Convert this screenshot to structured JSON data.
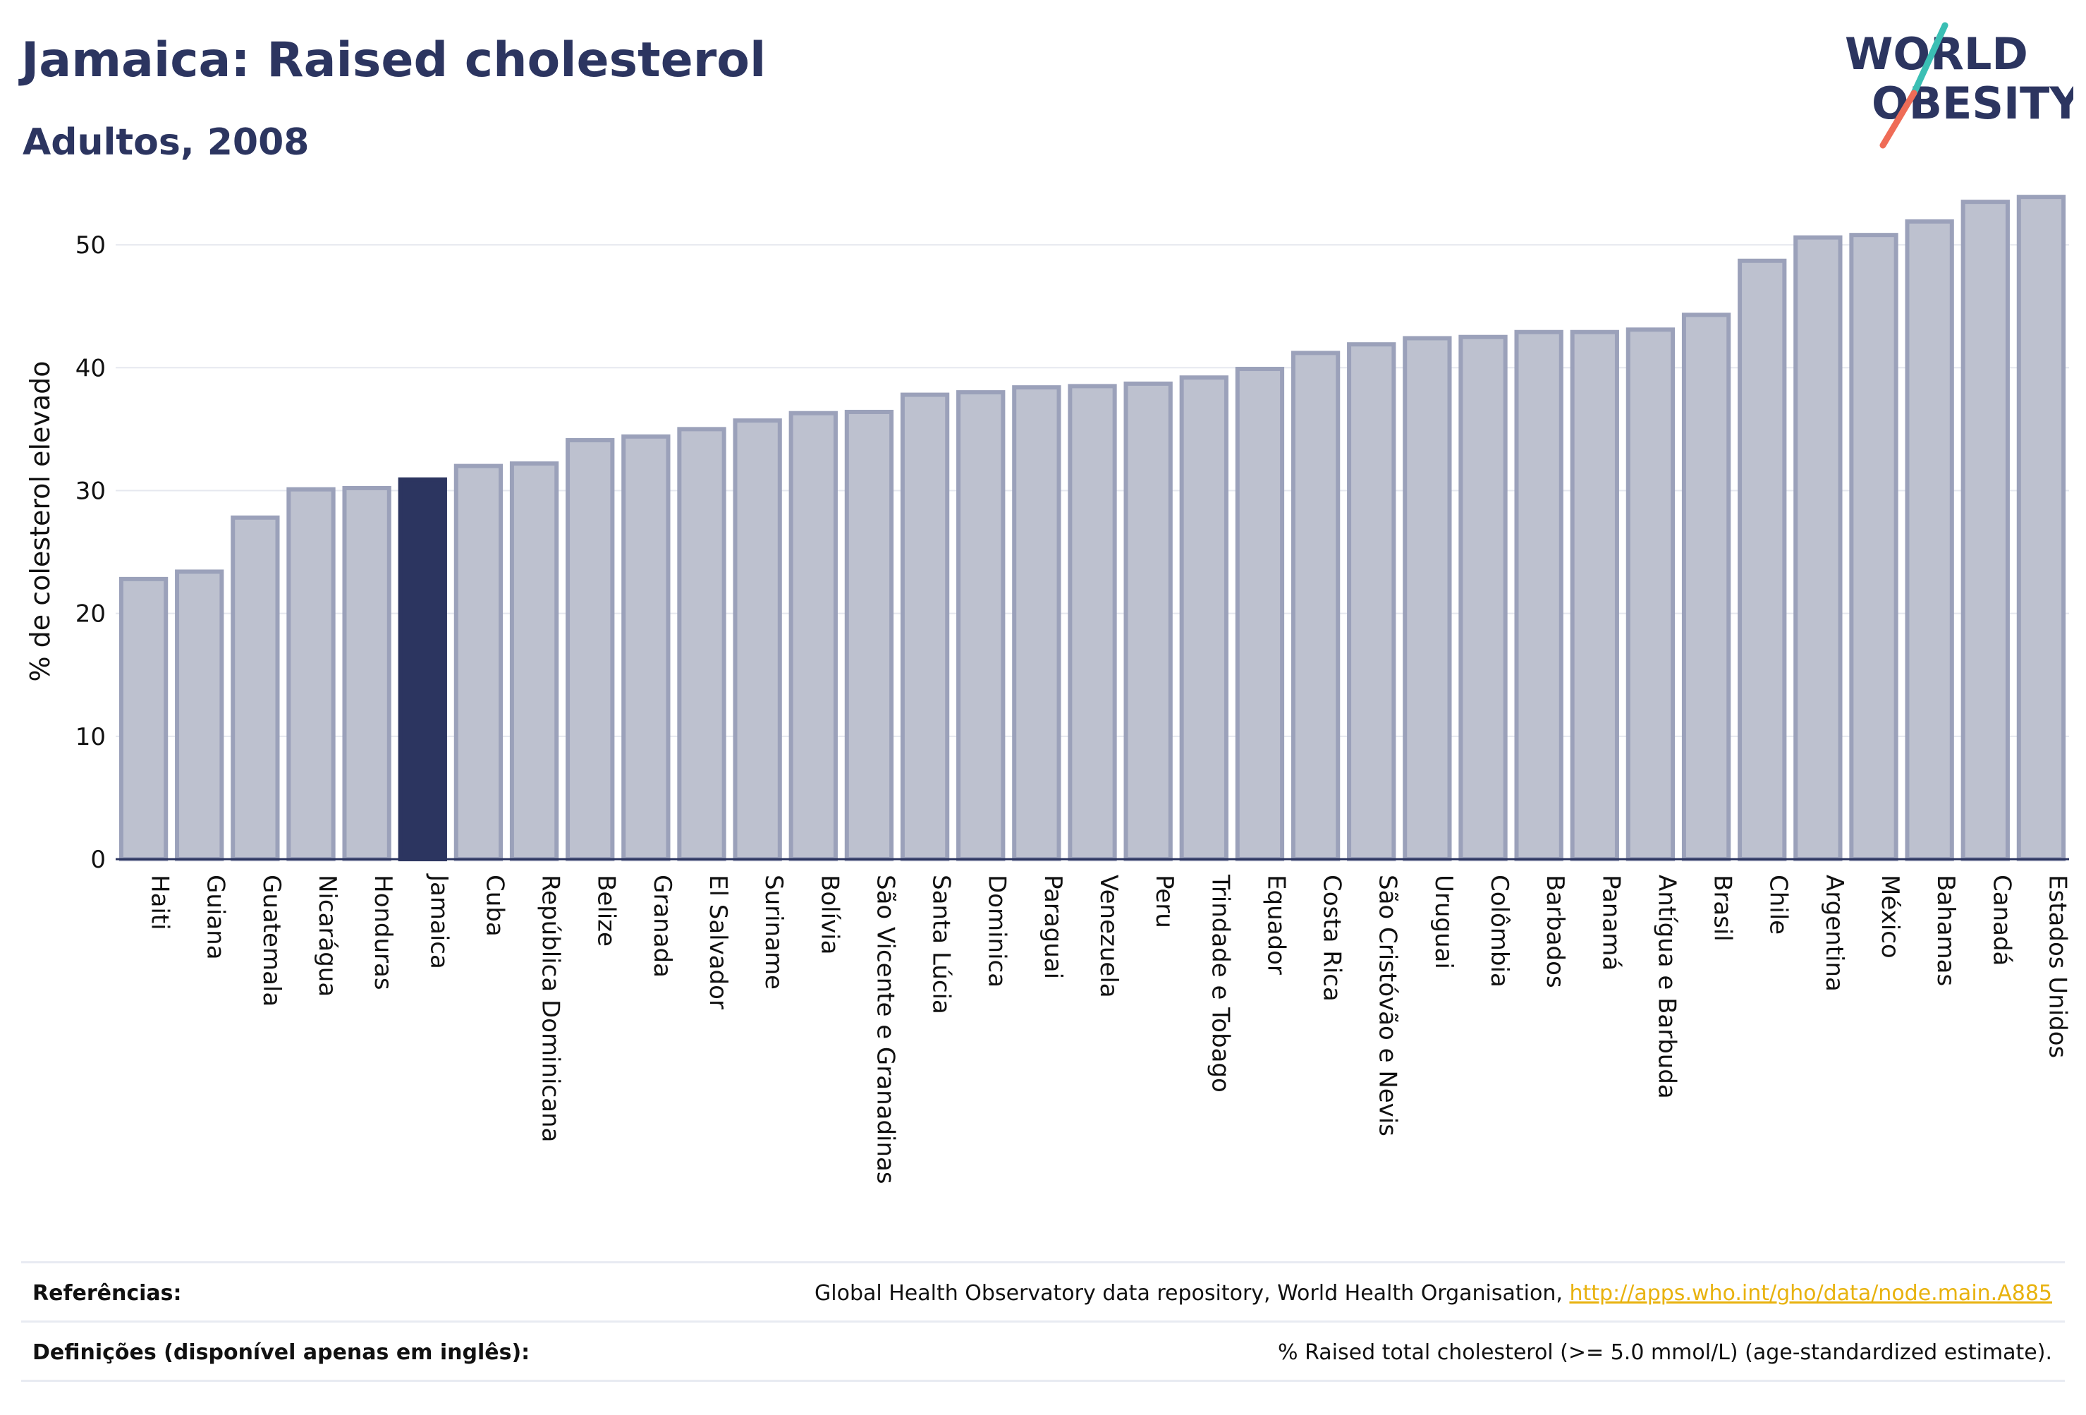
{
  "header": {
    "title": "Jamaica: Raised cholesterol",
    "subtitle": "Adultos, 2008"
  },
  "logo": {
    "line1": "WORLD",
    "line2": "OBESITY",
    "colors": {
      "text": "#2c3560",
      "slash_top": "#3bbfb4",
      "slash_bottom": "#ef6c57"
    }
  },
  "chart_data": {
    "type": "bar",
    "ylabel": "% de colesterol elevado",
    "xlabel": "",
    "ylim": [
      0,
      55
    ],
    "yticks": [
      0,
      10,
      20,
      30,
      40,
      50
    ],
    "grid": "horizontal",
    "highlight": "Jamaica",
    "colors": {
      "bar": "#bdc1cf",
      "bar_outline": "#9ba1ba",
      "highlight": "#2c3560",
      "grid": "#e6e8ef",
      "baseline": "#2c3560"
    },
    "categories": [
      "Haiti",
      "Guiana",
      "Guatemala",
      "Nicarágua",
      "Honduras",
      "Jamaica",
      "Cuba",
      "República Dominicana",
      "Belize",
      "Granada",
      "El Salvador",
      "Suriname",
      "Bolívia",
      "São Vicente e Granadinas",
      "Santa Lúcia",
      "Dominica",
      "Paraguai",
      "Venezuela",
      "Peru",
      "Trindade e Tobago",
      "Equador",
      "Costa Rica",
      "São Cristóvão e Nevis",
      "Uruguai",
      "Colômbia",
      "Barbados",
      "Panamá",
      "Antígua e Barbuda",
      "Brasil",
      "Chile",
      "Argentina",
      "México",
      "Bahamas",
      "Canadá",
      "Estados Unidos"
    ],
    "values": [
      22.8,
      23.4,
      27.8,
      30.1,
      30.2,
      30.9,
      32.0,
      32.2,
      34.1,
      34.4,
      35.0,
      35.7,
      36.3,
      36.4,
      37.8,
      38.0,
      38.4,
      38.5,
      38.7,
      39.2,
      39.9,
      41.2,
      41.9,
      42.4,
      42.5,
      42.9,
      42.9,
      43.1,
      44.3,
      48.7,
      50.6,
      50.8,
      51.9,
      53.5,
      53.9
    ]
  },
  "footer": {
    "references_label": "Referências:",
    "references_text": "Global Health Observatory data repository, World Health Organisation, ",
    "references_link": "http://apps.who.int/gho/data/node.main.A885",
    "definitions_label": "Definições (disponível apenas em inglês):",
    "definitions_text": "% Raised total cholesterol (>= 5.0 mmol/L) (age-standardized estimate)."
  }
}
